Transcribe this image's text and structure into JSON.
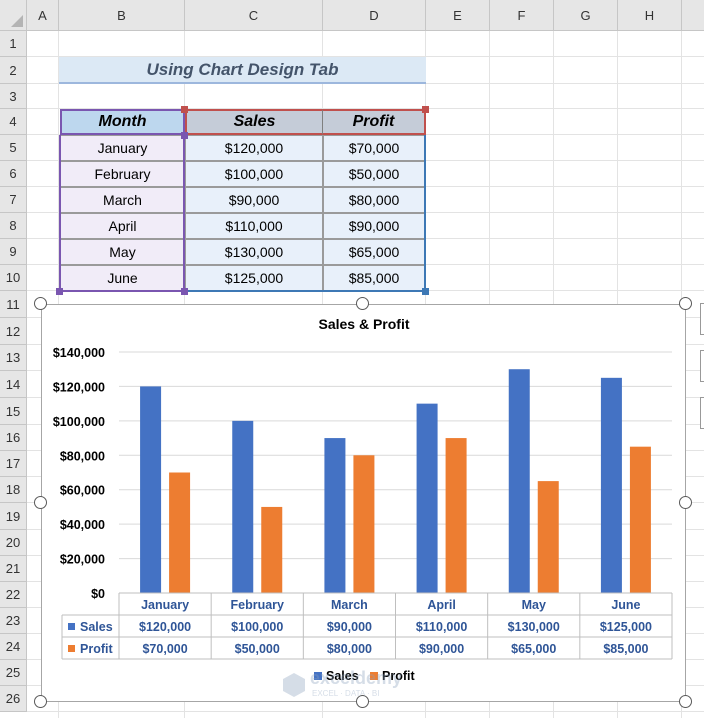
{
  "columns": [
    "A",
    "B",
    "C",
    "D",
    "E",
    "F",
    "G",
    "H"
  ],
  "rows": [
    "1",
    "2",
    "3",
    "4",
    "5",
    "6",
    "7",
    "8",
    "9",
    "10",
    "11",
    "12",
    "13",
    "14",
    "15",
    "16",
    "17",
    "18",
    "19",
    "20",
    "21",
    "22",
    "23",
    "24",
    "25",
    "26"
  ],
  "sheet_title": "Using Chart Design Tab",
  "table": {
    "headers": [
      "Month",
      "Sales",
      "Profit"
    ],
    "rows": [
      {
        "month": "January",
        "sales": "$120,000",
        "profit": "$70,000"
      },
      {
        "month": "February",
        "sales": "$100,000",
        "profit": "$50,000"
      },
      {
        "month": "March",
        "sales": "$90,000",
        "profit": "$80,000"
      },
      {
        "month": "April",
        "sales": "$110,000",
        "profit": "$90,000"
      },
      {
        "month": "May",
        "sales": "$130,000",
        "profit": "$65,000"
      },
      {
        "month": "June",
        "sales": "$125,000",
        "profit": "$85,000"
      }
    ]
  },
  "watermark": "exceldemy EXCEL · DATA · BI",
  "chart_data": {
    "type": "bar",
    "title": "Sales & Profit",
    "categories": [
      "January",
      "February",
      "March",
      "April",
      "May",
      "June"
    ],
    "series": [
      {
        "name": "Sales",
        "color": "#4472c4",
        "values": [
          120000,
          100000,
          90000,
          110000,
          130000,
          125000
        ],
        "labels": [
          "$120,000",
          "$100,000",
          "$90,000",
          "$110,000",
          "$130,000",
          "$125,000"
        ]
      },
      {
        "name": "Profit",
        "color": "#ed7d31",
        "values": [
          70000,
          50000,
          80000,
          90000,
          65000,
          85000
        ],
        "labels": [
          "$70,000",
          "$50,000",
          "$80,000",
          "$90,000",
          "$65,000",
          "$85,000"
        ]
      }
    ],
    "ylim": [
      0,
      140000
    ],
    "yticks": [
      0,
      20000,
      40000,
      60000,
      80000,
      100000,
      120000,
      140000
    ],
    "ytick_labels": [
      "$0",
      "$20,000",
      "$40,000",
      "$60,000",
      "$80,000",
      "$100,000",
      "$120,000",
      "$140,000"
    ],
    "grid": true,
    "data_table": true,
    "legend_position": "bottom"
  }
}
